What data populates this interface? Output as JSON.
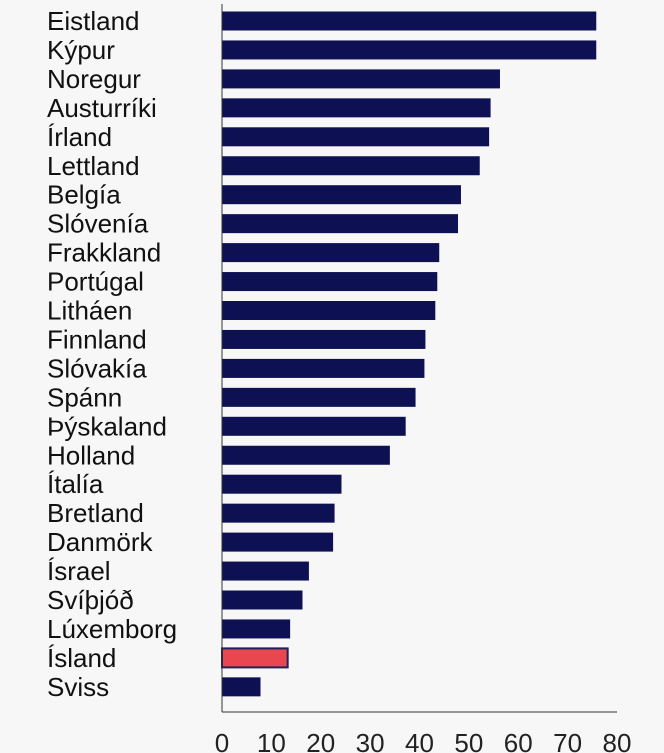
{
  "chart_data": {
    "type": "bar",
    "orientation": "horizontal",
    "categories": [
      "Eistland",
      "Kýpur",
      "Noregur",
      "Austurríki",
      "Írland",
      "Lettland",
      "Belgía",
      "Slóvenía",
      "Frakkland",
      "Portúgal",
      "Litháen",
      "Finnland",
      "Slóvakía",
      "Spánn",
      "Þýskaland",
      "Holland",
      "Ítalía",
      "Bretland",
      "Danmörk",
      "Ísrael",
      "Svíþjóð",
      "Lúxemborg",
      "Ísland",
      "Sviss"
    ],
    "values": [
      75.8,
      75.8,
      56.3,
      54.4,
      54.1,
      52.2,
      48.4,
      47.8,
      44.0,
      43.6,
      43.2,
      41.2,
      41.0,
      39.2,
      37.2,
      34.0,
      24.2,
      22.8,
      22.5,
      17.6,
      16.3,
      13.8,
      13.3,
      7.8
    ],
    "highlight_category": "Ísland",
    "xlim": [
      0,
      80
    ],
    "xticks": [
      "0",
      "10",
      "20",
      "30",
      "40",
      "50",
      "60",
      "70",
      "80"
    ],
    "grid": false,
    "legend": "none",
    "colors": {
      "bar": "#0d1052",
      "highlight": "#e8474f",
      "highlight_border": "#20205a",
      "axis": "#333333"
    }
  }
}
